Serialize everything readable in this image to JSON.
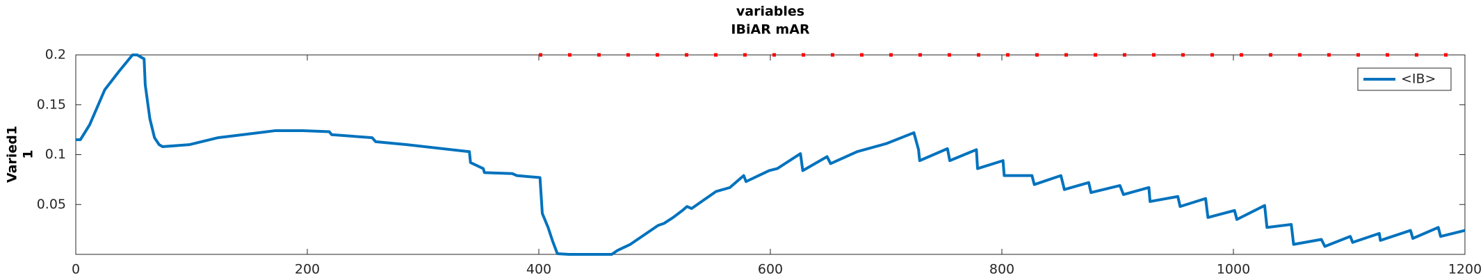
{
  "chart_data": {
    "type": "line",
    "title": [
      "variables",
      "IBiAR mAR"
    ],
    "ylabel": [
      "Varied1",
      "1"
    ],
    "xlim": [
      0,
      1200
    ],
    "xticks": [
      0,
      200,
      400,
      600,
      800,
      1000,
      1200
    ],
    "ylim": [
      0,
      0.2
    ],
    "yticks": [
      0.05,
      0.1,
      0.15,
      0.2
    ],
    "grid": false,
    "legend": "northeast",
    "series": [
      {
        "name": "<IB>",
        "color": "#0072bd",
        "linestyle": "solid",
        "x": [
          0,
          4,
          12,
          25,
          37,
          49,
          53,
          59,
          60,
          64,
          68,
          72,
          75,
          98,
          123,
          172,
          196,
          219,
          221,
          256,
          259,
          286,
          340,
          341,
          352,
          353,
          377,
          381,
          401,
          403,
          408,
          412,
          416,
          426,
          463,
          468,
          479,
          503,
          508,
          516,
          524,
          528,
          532,
          553,
          565,
          577,
          579,
          599,
          606,
          626,
          628,
          649,
          652,
          675,
          700,
          724,
          728,
          729,
          753,
          755,
          778,
          779,
          801,
          802,
          826,
          828,
          851,
          854,
          875,
          877,
          902,
          905,
          927,
          928,
          952,
          954,
          976,
          978,
          1001,
          1003,
          1027,
          1029,
          1050,
          1052,
          1076,
          1079,
          1101,
          1103,
          1126,
          1127,
          1153,
          1155,
          1177,
          1179,
          1200
        ],
        "values": [
          0.115,
          0.115,
          0.13,
          0.165,
          0.183,
          0.2,
          0.2,
          0.196,
          0.17,
          0.136,
          0.117,
          0.11,
          0.108,
          0.11,
          0.117,
          0.124,
          0.124,
          0.123,
          0.12,
          0.117,
          0.113,
          0.11,
          0.103,
          0.092,
          0.086,
          0.082,
          0.081,
          0.079,
          0.077,
          0.041,
          0.027,
          0.013,
          0.0007,
          0,
          0,
          0.004,
          0.01,
          0.029,
          0.031,
          0.037,
          0.044,
          0.048,
          0.046,
          0.063,
          0.067,
          0.079,
          0.073,
          0.084,
          0.086,
          0.101,
          0.084,
          0.098,
          0.091,
          0.103,
          0.111,
          0.122,
          0.105,
          0.094,
          0.106,
          0.094,
          0.105,
          0.086,
          0.094,
          0.079,
          0.079,
          0.07,
          0.079,
          0.065,
          0.072,
          0.062,
          0.069,
          0.06,
          0.067,
          0.053,
          0.058,
          0.048,
          0.056,
          0.037,
          0.044,
          0.035,
          0.049,
          0.027,
          0.03,
          0.01,
          0.015,
          0.008,
          0.018,
          0.012,
          0.021,
          0.014,
          0.024,
          0.016,
          0.027,
          0.018,
          0.024
        ]
      },
      {
        "color": "#ff0000",
        "linestyle": "dotted",
        "x": [
          400,
          1200
        ],
        "values": [
          0.2,
          0.2
        ]
      }
    ]
  }
}
